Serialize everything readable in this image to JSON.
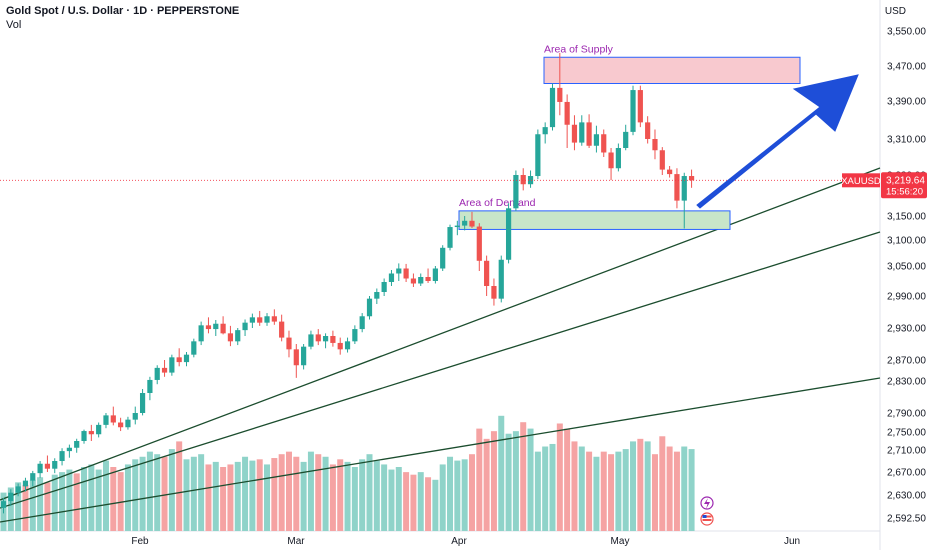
{
  "header": {
    "title": "Gold Spot / U.S. Dollar · 1D · PEPPERSTONE",
    "volume_label": "Vol"
  },
  "currency": "USD",
  "price_tag": {
    "symbol": "XAUUSD",
    "price": "3,219.64",
    "countdown": "15:56:20",
    "color": "#f23645"
  },
  "colors": {
    "up": "#26a69a",
    "down": "#ef5350",
    "vol_up": "#8fd3c9",
    "vol_down": "#f5a3a3",
    "supply_fill": "#f8c9cf",
    "supply_border": "#2962ff",
    "demand_fill": "#c8e6c9",
    "demand_border": "#2962ff",
    "trendline": "#1b4d2e",
    "arrow": "#1e4ed8",
    "zone_label": "#9c27b0"
  },
  "chart_data": {
    "type": "candlestick",
    "symbol": "XAUUSD",
    "timeframe": "1D",
    "y_axis": {
      "ticks": [
        "3,550.00",
        "3,470.00",
        "3,390.00",
        "3,310.00",
        "3,230.00",
        "3,150.00",
        "3,100.00",
        "3,050.00",
        "2,990.00",
        "2,930.00",
        "2,870.00",
        "2,830.00",
        "2,790.00",
        "2,750.00",
        "2,710.00",
        "2,670.00",
        "2,630.00",
        "2,592.50"
      ]
    },
    "x_axis": {
      "ticks": [
        "Feb",
        "Mar",
        "Apr",
        "May",
        "Jun"
      ]
    },
    "annotations": {
      "supply_label": "Area of Supply",
      "demand_label": "Area of Demand",
      "supply_zone": [
        3430,
        3490
      ],
      "demand_zone": [
        3122,
        3160
      ]
    },
    "candles": [
      [
        2609,
        2625,
        2600,
        2620
      ],
      [
        2620,
        2640,
        2612,
        2634
      ],
      [
        2634,
        2650,
        2628,
        2645
      ],
      [
        2645,
        2660,
        2636,
        2655
      ],
      [
        2655,
        2672,
        2645,
        2668
      ],
      [
        2668,
        2690,
        2660,
        2685
      ],
      [
        2685,
        2700,
        2670,
        2676
      ],
      [
        2676,
        2695,
        2668,
        2690
      ],
      [
        2690,
        2714,
        2682,
        2708
      ],
      [
        2708,
        2722,
        2696,
        2715
      ],
      [
        2715,
        2735,
        2705,
        2730
      ],
      [
        2730,
        2755,
        2724,
        2752
      ],
      [
        2752,
        2765,
        2730,
        2745
      ],
      [
        2745,
        2770,
        2738,
        2765
      ],
      [
        2765,
        2790,
        2758,
        2785
      ],
      [
        2785,
        2798,
        2764,
        2770
      ],
      [
        2770,
        2780,
        2752,
        2760
      ],
      [
        2760,
        2782,
        2755,
        2776
      ],
      [
        2776,
        2798,
        2766,
        2790
      ],
      [
        2790,
        2820,
        2785,
        2815
      ],
      [
        2815,
        2838,
        2806,
        2832
      ],
      [
        2832,
        2860,
        2826,
        2855
      ],
      [
        2855,
        2870,
        2838,
        2846
      ],
      [
        2846,
        2880,
        2840,
        2875
      ],
      [
        2875,
        2892,
        2858,
        2866
      ],
      [
        2866,
        2885,
        2858,
        2880
      ],
      [
        2880,
        2910,
        2875,
        2905
      ],
      [
        2905,
        2942,
        2898,
        2935
      ],
      [
        2935,
        2950,
        2920,
        2928
      ],
      [
        2928,
        2945,
        2915,
        2938
      ],
      [
        2938,
        2952,
        2918,
        2920
      ],
      [
        2920,
        2934,
        2896,
        2905
      ],
      [
        2905,
        2930,
        2898,
        2926
      ],
      [
        2926,
        2946,
        2915,
        2940
      ],
      [
        2940,
        2957,
        2930,
        2950
      ],
      [
        2950,
        2962,
        2934,
        2940
      ],
      [
        2940,
        2958,
        2934,
        2952
      ],
      [
        2952,
        2965,
        2936,
        2942
      ],
      [
        2942,
        2955,
        2905,
        2912
      ],
      [
        2912,
        2925,
        2875,
        2890
      ],
      [
        2890,
        2900,
        2836,
        2860
      ],
      [
        2860,
        2900,
        2852,
        2895
      ],
      [
        2895,
        2925,
        2890,
        2918
      ],
      [
        2918,
        2928,
        2898,
        2905
      ],
      [
        2905,
        2920,
        2892,
        2915
      ],
      [
        2915,
        2925,
        2895,
        2902
      ],
      [
        2902,
        2912,
        2880,
        2890
      ],
      [
        2890,
        2912,
        2884,
        2905
      ],
      [
        2905,
        2935,
        2900,
        2928
      ],
      [
        2928,
        2958,
        2922,
        2952
      ],
      [
        2952,
        2990,
        2946,
        2985
      ],
      [
        2985,
        3005,
        2975,
        2998
      ],
      [
        2998,
        3025,
        2990,
        3018
      ],
      [
        3018,
        3042,
        3010,
        3035
      ],
      [
        3035,
        3055,
        3020,
        3045
      ],
      [
        3045,
        3054,
        3018,
        3025
      ],
      [
        3025,
        3035,
        3008,
        3015
      ],
      [
        3015,
        3035,
        3010,
        3028
      ],
      [
        3028,
        3045,
        3016,
        3020
      ],
      [
        3020,
        3050,
        3015,
        3045
      ],
      [
        3045,
        3090,
        3040,
        3085
      ],
      [
        3085,
        3132,
        3080,
        3127
      ],
      [
        3127,
        3140,
        3110,
        3130
      ],
      [
        3130,
        3150,
        3120,
        3140
      ],
      [
        3140,
        3158,
        3125,
        3128
      ],
      [
        3128,
        3135,
        3040,
        3060
      ],
      [
        3060,
        3070,
        2990,
        3010
      ],
      [
        3010,
        3025,
        2972,
        2985
      ],
      [
        2985,
        3070,
        2978,
        3062
      ],
      [
        3062,
        3175,
        3055,
        3165
      ],
      [
        3165,
        3240,
        3160,
        3230
      ],
      [
        3230,
        3245,
        3200,
        3212
      ],
      [
        3212,
        3240,
        3205,
        3228
      ],
      [
        3228,
        3330,
        3222,
        3320
      ],
      [
        3320,
        3345,
        3300,
        3335
      ],
      [
        3335,
        3430,
        3328,
        3420
      ],
      [
        3420,
        3500,
        3360,
        3388
      ],
      [
        3388,
        3405,
        3290,
        3340
      ],
      [
        3340,
        3360,
        3285,
        3302
      ],
      [
        3302,
        3360,
        3295,
        3345
      ],
      [
        3345,
        3362,
        3290,
        3295
      ],
      [
        3295,
        3338,
        3280,
        3320
      ],
      [
        3320,
        3330,
        3270,
        3280
      ],
      [
        3280,
        3290,
        3220,
        3245
      ],
      [
        3245,
        3300,
        3238,
        3290
      ],
      [
        3290,
        3340,
        3285,
        3325
      ],
      [
        3325,
        3425,
        3318,
        3415
      ],
      [
        3415,
        3425,
        3335,
        3345
      ],
      [
        3345,
        3358,
        3300,
        3310
      ],
      [
        3310,
        3330,
        3265,
        3285
      ],
      [
        3285,
        3292,
        3230,
        3242
      ],
      [
        3242,
        3250,
        3225,
        3232
      ],
      [
        3232,
        3245,
        3165,
        3180
      ],
      [
        3180,
        3235,
        3124,
        3228
      ],
      [
        3228,
        3242,
        3205,
        3219.64
      ]
    ],
    "volume": [
      [
        0.3,
        1
      ],
      [
        0.34,
        1
      ],
      [
        0.38,
        1
      ],
      [
        0.36,
        0
      ],
      [
        0.4,
        1
      ],
      [
        0.42,
        1
      ],
      [
        0.38,
        0
      ],
      [
        0.44,
        1
      ],
      [
        0.46,
        1
      ],
      [
        0.48,
        1
      ],
      [
        0.45,
        0
      ],
      [
        0.5,
        1
      ],
      [
        0.52,
        1
      ],
      [
        0.48,
        1
      ],
      [
        0.55,
        1
      ],
      [
        0.5,
        0
      ],
      [
        0.46,
        0
      ],
      [
        0.52,
        1
      ],
      [
        0.56,
        1
      ],
      [
        0.58,
        1
      ],
      [
        0.62,
        1
      ],
      [
        0.6,
        1
      ],
      [
        0.58,
        0
      ],
      [
        0.64,
        1
      ],
      [
        0.7,
        0
      ],
      [
        0.56,
        1
      ],
      [
        0.58,
        1
      ],
      [
        0.6,
        1
      ],
      [
        0.52,
        0
      ],
      [
        0.54,
        1
      ],
      [
        0.5,
        0
      ],
      [
        0.52,
        0
      ],
      [
        0.54,
        1
      ],
      [
        0.58,
        1
      ],
      [
        0.55,
        1
      ],
      [
        0.56,
        0
      ],
      [
        0.52,
        1
      ],
      [
        0.57,
        0
      ],
      [
        0.6,
        0
      ],
      [
        0.62,
        0
      ],
      [
        0.58,
        0
      ],
      [
        0.54,
        1
      ],
      [
        0.62,
        1
      ],
      [
        0.6,
        0
      ],
      [
        0.58,
        1
      ],
      [
        0.52,
        0
      ],
      [
        0.56,
        0
      ],
      [
        0.54,
        1
      ],
      [
        0.5,
        1
      ],
      [
        0.56,
        1
      ],
      [
        0.6,
        1
      ],
      [
        0.55,
        1
      ],
      [
        0.52,
        1
      ],
      [
        0.48,
        1
      ],
      [
        0.5,
        1
      ],
      [
        0.46,
        0
      ],
      [
        0.44,
        0
      ],
      [
        0.46,
        1
      ],
      [
        0.42,
        0
      ],
      [
        0.4,
        1
      ],
      [
        0.52,
        1
      ],
      [
        0.58,
        1
      ],
      [
        0.55,
        1
      ],
      [
        0.56,
        1
      ],
      [
        0.6,
        0
      ],
      [
        0.8,
        0
      ],
      [
        0.72,
        0
      ],
      [
        0.78,
        0
      ],
      [
        0.9,
        1
      ],
      [
        0.76,
        1
      ],
      [
        0.78,
        1
      ],
      [
        0.85,
        0
      ],
      [
        0.8,
        1
      ],
      [
        0.62,
        1
      ],
      [
        0.66,
        1
      ],
      [
        0.68,
        1
      ],
      [
        0.84,
        0
      ],
      [
        0.8,
        0
      ],
      [
        0.7,
        0
      ],
      [
        0.66,
        1
      ],
      [
        0.62,
        0
      ],
      [
        0.58,
        1
      ],
      [
        0.62,
        0
      ],
      [
        0.6,
        0
      ],
      [
        0.62,
        1
      ],
      [
        0.64,
        1
      ],
      [
        0.7,
        1
      ],
      [
        0.72,
        0
      ],
      [
        0.7,
        1
      ],
      [
        0.6,
        0
      ],
      [
        0.74,
        0
      ],
      [
        0.66,
        0
      ],
      [
        0.62,
        0
      ],
      [
        0.66,
        1
      ],
      [
        0.64,
        1
      ]
    ]
  }
}
